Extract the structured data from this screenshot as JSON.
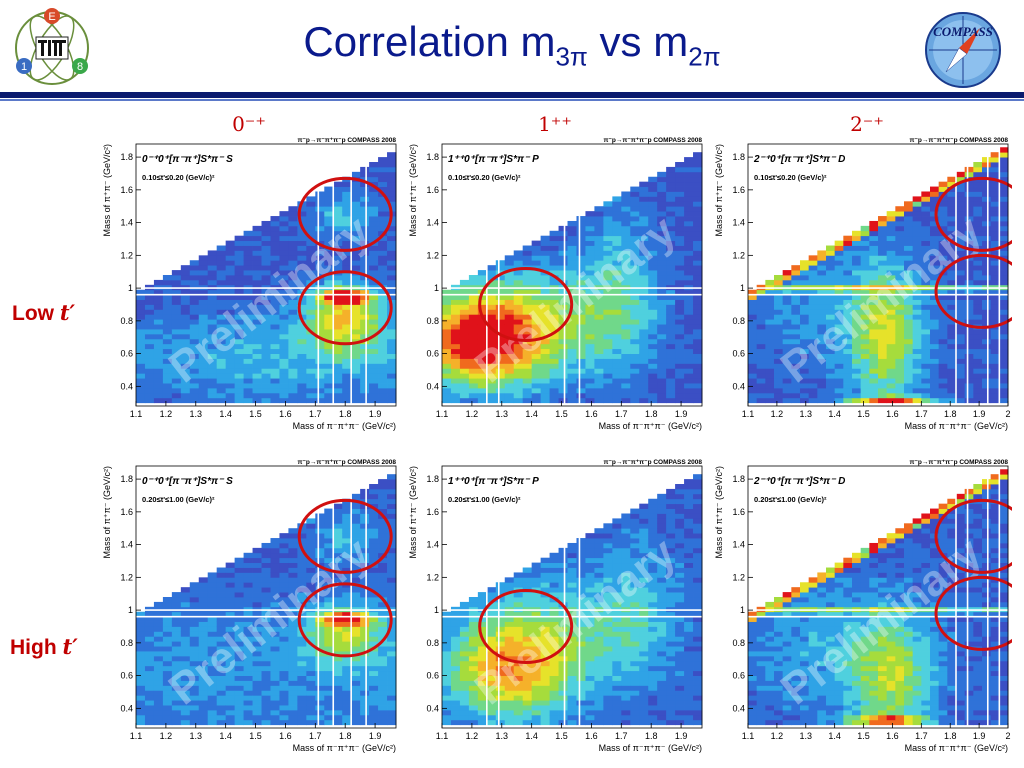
{
  "slide": {
    "title_main": "Correlation m",
    "title_sub1": "3π",
    "title_mid": " vs m",
    "title_sub2": "2π",
    "right_logo_text": "COMPASS",
    "left_logo_letters": [
      "E",
      "1",
      "8"
    ],
    "columns": [
      "0⁻⁺",
      "1⁺⁺",
      "2⁻⁺"
    ],
    "rows": [
      {
        "label": "Low ",
        "var": "t′"
      },
      {
        "label": "High ",
        "var": "t′"
      }
    ]
  },
  "chart_data": [
    {
      "type": "heatmap",
      "wave": "0⁻⁺0⁺[π⁻π⁺]S*π⁻ S",
      "tprime": "0.10≤t'≤0.20 (GeV/c)²",
      "header": "π⁻p→π⁻π⁺π⁻p COMPASS 2008",
      "watermark": "Preliminary",
      "xlabel": "Mass of π⁻π⁺π⁻ (GeV/c²)",
      "ylabel": "Mass of π⁺π⁻ (GeV/c²)",
      "xlim": [
        1.1,
        1.97
      ],
      "ylim": [
        0.28,
        1.88
      ],
      "xticks": [
        "1.1",
        "1.2",
        "1.3",
        "1.4",
        "1.5",
        "1.6",
        "1.7",
        "1.8",
        "1.9"
      ],
      "yticks": [
        "0.4",
        "0.6",
        "0.8",
        "1",
        "1.2",
        "1.4",
        "1.6",
        "1.8"
      ],
      "pattern": "f0_0mp_low",
      "circles": [
        {
          "x": 1.8,
          "y": 1.45
        },
        {
          "x": 1.8,
          "y": 0.88
        }
      ],
      "xlines": [
        1.71,
        1.76,
        1.82,
        1.87
      ],
      "ylines": [
        0.96,
        1.0
      ]
    },
    {
      "type": "heatmap",
      "wave": "1⁺⁺0⁺[π⁻π⁺]S*π⁻ P",
      "tprime": "0.10≤t'≤0.20 (GeV/c)²",
      "header": "π⁻p→π⁻π⁺π⁻p COMPASS 2008",
      "watermark": "Preliminary",
      "xlabel": "Mass of π⁻π⁺π⁻ (GeV/c²)",
      "ylabel": "Mass of π⁺π⁻ (GeV/c²)",
      "xlim": [
        1.1,
        1.97
      ],
      "ylim": [
        0.28,
        1.88
      ],
      "xticks": [
        "1.1",
        "1.2",
        "1.3",
        "1.4",
        "1.5",
        "1.6",
        "1.7",
        "1.8",
        "1.9"
      ],
      "yticks": [
        "0.4",
        "0.6",
        "0.8",
        "1",
        "1.2",
        "1.4",
        "1.6",
        "1.8"
      ],
      "pattern": "f0_1pp_low",
      "circles": [
        {
          "x": 1.38,
          "y": 0.9
        }
      ],
      "xlines": [
        1.25,
        1.29,
        1.51,
        1.56
      ],
      "ylines": [
        0.96,
        1.0
      ]
    },
    {
      "type": "heatmap",
      "wave": "2⁻⁺0⁺[π⁻π⁺]S*π⁻ D",
      "tprime": "0.10≤t'≤0.20 (GeV/c)²",
      "header": "π⁻p→π⁻π⁺π⁻p COMPASS 2008",
      "watermark": "Preliminary",
      "xlabel": "Mass of π⁻π⁺π⁻ (GeV/c²)",
      "ylabel": "Mass of π⁺π⁻ (GeV/c²)",
      "xlim": [
        1.1,
        2.0
      ],
      "ylim": [
        0.28,
        1.88
      ],
      "xticks": [
        "1.1",
        "1.2",
        "1.3",
        "1.4",
        "1.5",
        "1.6",
        "1.7",
        "1.8",
        "1.9",
        "2"
      ],
      "yticks": [
        "0.4",
        "0.6",
        "0.8",
        "1",
        "1.2",
        "1.4",
        "1.6",
        "1.8"
      ],
      "pattern": "f0_2mp_low",
      "circles": [
        {
          "x": 1.91,
          "y": 1.45
        },
        {
          "x": 1.91,
          "y": 0.98
        }
      ],
      "xlines": [
        1.82,
        1.86,
        1.93,
        1.97
      ],
      "ylines": [
        0.96,
        1.0
      ]
    },
    {
      "type": "heatmap",
      "wave": "0⁻⁺0⁺[π⁻π⁺]S*π⁻ S",
      "tprime": "0.20≤t'≤1.00 (GeV/c)²",
      "header": "π⁻p→π⁻π⁺π⁻p COMPASS 2008",
      "watermark": "Preliminary",
      "xlabel": "Mass of π⁻π⁺π⁻ (GeV/c²)",
      "ylabel": "Mass of π⁺π⁻ (GeV/c²)",
      "xlim": [
        1.1,
        1.97
      ],
      "ylim": [
        0.28,
        1.88
      ],
      "xticks": [
        "1.1",
        "1.2",
        "1.3",
        "1.4",
        "1.5",
        "1.6",
        "1.7",
        "1.8",
        "1.9"
      ],
      "yticks": [
        "0.4",
        "0.6",
        "0.8",
        "1",
        "1.2",
        "1.4",
        "1.6",
        "1.8"
      ],
      "pattern": "f0_0mp_high",
      "circles": [
        {
          "x": 1.8,
          "y": 1.45
        },
        {
          "x": 1.8,
          "y": 0.94
        }
      ],
      "xlines": [
        1.71,
        1.76,
        1.82,
        1.87
      ],
      "ylines": [
        0.96,
        1.0
      ]
    },
    {
      "type": "heatmap",
      "wave": "1⁺⁺0⁺[π⁻π⁺]S*π⁻ P",
      "tprime": "0.20≤t'≤1.00 (GeV/c)²",
      "header": "π⁻p→π⁻π⁺π⁻p COMPASS 2008",
      "watermark": "Preliminary",
      "xlabel": "Mass of π⁻π⁺π⁻ (GeV/c²)",
      "ylabel": "Mass of π⁺π⁻ (GeV/c²)",
      "xlim": [
        1.1,
        1.97
      ],
      "ylim": [
        0.28,
        1.88
      ],
      "xticks": [
        "1.1",
        "1.2",
        "1.3",
        "1.4",
        "1.5",
        "1.6",
        "1.7",
        "1.8",
        "1.9"
      ],
      "yticks": [
        "0.4",
        "0.6",
        "0.8",
        "1",
        "1.2",
        "1.4",
        "1.6",
        "1.8"
      ],
      "pattern": "f0_1pp_high",
      "circles": [
        {
          "x": 1.38,
          "y": 0.9
        }
      ],
      "xlines": [
        1.25,
        1.29,
        1.51,
        1.56
      ],
      "ylines": [
        0.96,
        1.0
      ]
    },
    {
      "type": "heatmap",
      "wave": "2⁻⁺0⁺[π⁻π⁺]S*π⁻ D",
      "tprime": "0.20≤t'≤1.00 (GeV/c)²",
      "header": "π⁻p→π⁻π⁺π⁻p COMPASS 2008",
      "watermark": "Preliminary",
      "xlabel": "Mass of π⁻π⁺π⁻ (GeV/c²)",
      "ylabel": "Mass of π⁺π⁻ (GeV/c²)",
      "xlim": [
        1.1,
        2.0
      ],
      "ylim": [
        0.28,
        1.88
      ],
      "xticks": [
        "1.1",
        "1.2",
        "1.3",
        "1.4",
        "1.5",
        "1.6",
        "1.7",
        "1.8",
        "1.9",
        "2"
      ],
      "yticks": [
        "0.4",
        "0.6",
        "0.8",
        "1",
        "1.2",
        "1.4",
        "1.6",
        "1.8"
      ],
      "pattern": "f0_2mp_high",
      "circles": [
        {
          "x": 1.91,
          "y": 1.45
        },
        {
          "x": 1.91,
          "y": 0.98
        }
      ],
      "xlines": [
        1.82,
        1.86,
        1.93,
        1.97
      ],
      "ylines": [
        0.96,
        1.0
      ]
    }
  ],
  "colors": {
    "title": "#0a1a8c",
    "accent_red": "#c00000",
    "circle": "#d01010",
    "bg_band": "#0a1a6e"
  }
}
